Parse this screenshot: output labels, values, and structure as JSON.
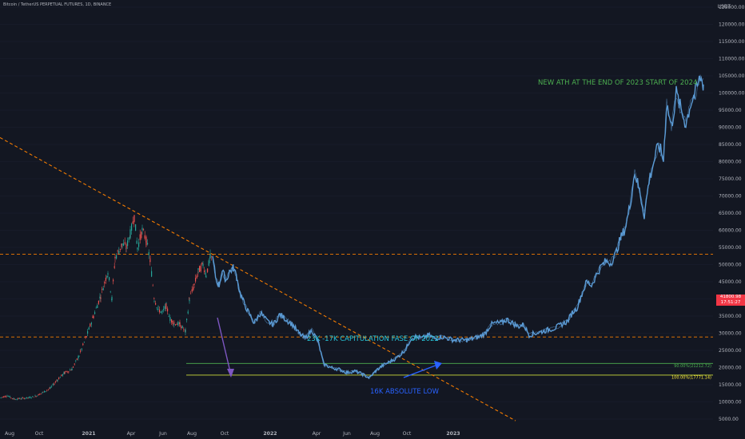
{
  "header": {
    "symbol": "Bitcoin / TetherUS PERPETUAL FUTURES, 1D, BINANCE",
    "currency": "USDT"
  },
  "current_price": {
    "value": "41800.98",
    "countdown": "17:51:27",
    "color": "#f23645"
  },
  "chart_data": {
    "type": "line",
    "yaxis": {
      "ticks": [
        "125000.00",
        "120000.00",
        "115000.00",
        "110000.00",
        "105000.00",
        "100000.00",
        "95000.00",
        "90000.00",
        "85000.00",
        "80000.00",
        "75000.00",
        "70000.00",
        "65000.00",
        "60000.00",
        "55000.00",
        "50000.00",
        "45000.00",
        "40000.00",
        "35000.00",
        "30000.00",
        "25000.00",
        "20000.00",
        "15000.00",
        "10000.00",
        "5000.00"
      ],
      "ylim": [
        5000,
        125000
      ]
    },
    "xaxis": {
      "ticks": [
        {
          "label": "Aug",
          "bold": false
        },
        {
          "label": "Oct",
          "bold": false
        },
        {
          "label": "2021",
          "bold": true
        },
        {
          "label": "Apr",
          "bold": false
        },
        {
          "label": "Jun",
          "bold": false
        },
        {
          "label": "Aug",
          "bold": false
        },
        {
          "label": "Oct",
          "bold": false
        },
        {
          "label": "2022",
          "bold": true
        },
        {
          "label": "Apr",
          "bold": false
        },
        {
          "label": "Jun",
          "bold": false
        },
        {
          "label": "Aug",
          "bold": false
        },
        {
          "label": "Oct",
          "bold": false
        },
        {
          "label": "2023",
          "bold": true
        }
      ]
    },
    "historical_series": {
      "color_up": "#26a69a",
      "color_down": "#ef5350",
      "points": [
        [
          0,
          11200
        ],
        [
          9,
          11800
        ],
        [
          18,
          10800
        ],
        [
          27,
          11000
        ],
        [
          36,
          11200
        ],
        [
          45,
          11700
        ],
        [
          54,
          12800
        ],
        [
          63,
          14000
        ],
        [
          72,
          16500
        ],
        [
          81,
          18500
        ],
        [
          90,
          19500
        ],
        [
          99,
          23500
        ],
        [
          108,
          29000
        ],
        [
          117,
          35000
        ],
        [
          126,
          41000
        ],
        [
          135,
          48000
        ],
        [
          140,
          40000
        ],
        [
          144,
          52000
        ],
        [
          153,
          56000
        ],
        [
          158,
          55000
        ],
        [
          163,
          59000
        ],
        [
          168,
          64000
        ],
        [
          172,
          55000
        ],
        [
          178,
          60000
        ],
        [
          183,
          57000
        ],
        [
          188,
          51000
        ],
        [
          193,
          40000
        ],
        [
          198,
          37000
        ],
        [
          203,
          36000
        ],
        [
          208,
          38000
        ],
        [
          213,
          34000
        ],
        [
          218,
          33000
        ],
        [
          225,
          32500
        ],
        [
          232,
          30500
        ],
        [
          237,
          40000
        ],
        [
          243,
          44000
        ],
        [
          248,
          48000
        ],
        [
          254,
          50000
        ],
        [
          258,
          47000
        ],
        [
          263,
          52000
        ],
        [
          266,
          52000
        ]
      ]
    },
    "projection_series": {
      "color": "#5b9bd5",
      "points": [
        [
          266,
          52000
        ],
        [
          270,
          46000
        ],
        [
          274,
          44000
        ],
        [
          278,
          48000
        ],
        [
          283,
          45500
        ],
        [
          287,
          48000
        ],
        [
          292,
          49000
        ],
        [
          296,
          46500
        ],
        [
          300,
          42000
        ],
        [
          304,
          39500
        ],
        [
          310,
          36500
        ],
        [
          318,
          33000
        ],
        [
          326,
          36000
        ],
        [
          334,
          33500
        ],
        [
          342,
          32500
        ],
        [
          350,
          35500
        ],
        [
          358,
          34000
        ],
        [
          366,
          32500
        ],
        [
          374,
          30000
        ],
        [
          382,
          28500
        ],
        [
          390,
          31000
        ],
        [
          398,
          27500
        ],
        [
          405,
          21000
        ],
        [
          414,
          20000
        ],
        [
          424,
          19500
        ],
        [
          434,
          18500
        ],
        [
          444,
          19000
        ],
        [
          454,
          18000
        ],
        [
          462,
          17000
        ],
        [
          470,
          19000
        ],
        [
          478,
          20500
        ],
        [
          486,
          21500
        ],
        [
          494,
          22500
        ],
        [
          502,
          24000
        ],
        [
          508,
          25500
        ],
        [
          514,
          28500
        ],
        [
          520,
          29000
        ],
        [
          528,
          28500
        ],
        [
          536,
          29500
        ],
        [
          544,
          28500
        ],
        [
          552,
          29000
        ],
        [
          560,
          28500
        ],
        [
          568,
          28000
        ],
        [
          576,
          28000
        ],
        [
          584,
          28000
        ],
        [
          592,
          28500
        ],
        [
          600,
          29000
        ],
        [
          607,
          30000
        ],
        [
          614,
          32500
        ],
        [
          620,
          33000
        ],
        [
          627,
          33000
        ],
        [
          634,
          34000
        ],
        [
          641,
          33000
        ],
        [
          648,
          32000
        ],
        [
          655,
          32500
        ],
        [
          662,
          29500
        ],
        [
          670,
          30000
        ],
        [
          678,
          30500
        ],
        [
          686,
          31000
        ],
        [
          694,
          31500
        ],
        [
          702,
          32500
        ],
        [
          710,
          33500
        ],
        [
          716,
          36000
        ],
        [
          722,
          37500
        ],
        [
          728,
          41500
        ],
        [
          734,
          45000
        ],
        [
          740,
          44000
        ],
        [
          746,
          47000
        ],
        [
          752,
          49500
        ],
        [
          758,
          51000
        ],
        [
          764,
          50500
        ],
        [
          770,
          53000
        ],
        [
          776,
          57500
        ],
        [
          782,
          60500
        ],
        [
          788,
          67000
        ],
        [
          794,
          77000
        ],
        [
          800,
          71500
        ],
        [
          806,
          64500
        ],
        [
          812,
          74500
        ],
        [
          818,
          80000
        ],
        [
          824,
          85000
        ],
        [
          830,
          80500
        ],
        [
          834,
          97000
        ],
        [
          840,
          90000
        ],
        [
          846,
          100000
        ],
        [
          852,
          95000
        ],
        [
          858,
          91000
        ],
        [
          864,
          97000
        ],
        [
          870,
          100000
        ],
        [
          876,
          104500
        ],
        [
          880,
          102500
        ]
      ]
    },
    "horizontal_levels": [
      {
        "price": 53000,
        "style": "dashed",
        "color": "#f57c00"
      },
      {
        "price": 28900,
        "style": "dashed",
        "color": "#f57c00"
      },
      {
        "price": 21200,
        "style": "solid",
        "color": "#4caf50",
        "label": "90.00%(21212.72)",
        "label_color": "#4caf50"
      },
      {
        "price": 17800,
        "style": "solid",
        "color": "#cddc39",
        "label": "100.00%(17771.14)",
        "label_color": "#ffeb3b"
      }
    ],
    "trendline": {
      "color": "#f57c00",
      "style": "dashed",
      "from": [
        0,
        87000
      ],
      "to": [
        645,
        4500
      ]
    },
    "annotations": [
      {
        "text": "NEW ATH AT THE END OF 2023 START OF 2024",
        "color": "#4caf50"
      },
      {
        "text": "23K -17K  CAPITULATION FASE OF 2022",
        "color": "#26c6da"
      },
      {
        "text": "16K ABSOLUTE LOW",
        "color": "#2962ff"
      }
    ]
  }
}
